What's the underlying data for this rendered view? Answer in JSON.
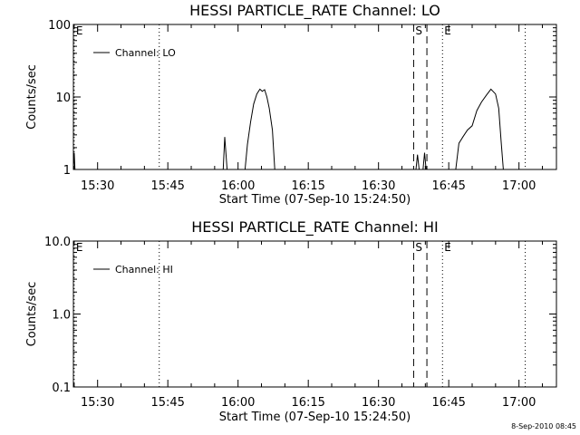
{
  "chart_data": [
    {
      "type": "line",
      "title": "HESSI PARTICLE_RATE Channel: LO",
      "xlabel": "Start Time (07-Sep-10 15:24:50)",
      "ylabel": "Counts/sec",
      "yscale": "log",
      "xlim": [
        "15:24:50",
        "17:08:00"
      ],
      "ylim": [
        1,
        100
      ],
      "xticks": [
        "15:30",
        "15:45",
        "16:00",
        "16:15",
        "16:30",
        "16:45",
        "17:00"
      ],
      "yticks": [
        "1",
        "10",
        "100"
      ],
      "legend": {
        "position": "top-left"
      },
      "series": [
        {
          "name": "Channel: LO",
          "segments": [
            [
              [
                "15:24:50",
                1.0
              ],
              [
                "15:25:00",
                1.7
              ],
              [
                "15:25:10",
                1.0
              ]
            ],
            [
              [
                "15:56:50",
                1.0
              ],
              [
                "15:57:10",
                2.8
              ],
              [
                "15:57:40",
                1.0
              ]
            ],
            [
              [
                "16:01:30",
                1.0
              ],
              [
                "16:02:00",
                2.2
              ],
              [
                "16:02:40",
                4.5
              ],
              [
                "16:03:20",
                8.0
              ],
              [
                "16:04:00",
                11.0
              ],
              [
                "16:04:40",
                12.8
              ],
              [
                "16:05:10",
                12.0
              ],
              [
                "16:05:40",
                12.6
              ],
              [
                "16:06:10",
                10.0
              ],
              [
                "16:06:40",
                7.0
              ],
              [
                "16:07:20",
                3.5
              ],
              [
                "16:07:50",
                1.0
              ]
            ],
            [
              [
                "16:38:00",
                1.0
              ],
              [
                "16:38:20",
                1.6
              ],
              [
                "16:38:40",
                1.0
              ]
            ],
            [
              [
                "16:39:30",
                1.0
              ],
              [
                "16:39:50",
                1.7
              ],
              [
                "16:40:10",
                1.0
              ]
            ],
            [
              [
                "16:46:30",
                1.0
              ],
              [
                "16:47:10",
                2.3
              ],
              [
                "16:48:00",
                2.8
              ],
              [
                "16:49:00",
                3.5
              ],
              [
                "16:50:00",
                4.0
              ],
              [
                "16:51:00",
                6.5
              ],
              [
                "16:52:00",
                8.5
              ],
              [
                "16:53:00",
                10.5
              ],
              [
                "16:54:00",
                12.8
              ],
              [
                "16:55:00",
                11.0
              ],
              [
                "16:55:40",
                7.0
              ],
              [
                "16:56:10",
                2.5
              ],
              [
                "16:56:40",
                1.0
              ]
            ]
          ]
        }
      ],
      "markers": [
        {
          "label": "E",
          "time": "15:25:00",
          "style": "dotted"
        },
        {
          "label": "",
          "time": "15:43:10",
          "style": "dotted"
        },
        {
          "label": "S",
          "time": "16:37:30",
          "style": "dashed"
        },
        {
          "label": "",
          "time": "16:40:20",
          "style": "dashed"
        },
        {
          "label": "E",
          "time": "16:43:40",
          "style": "dotted"
        },
        {
          "label": "",
          "time": "17:01:20",
          "style": "dotted"
        }
      ]
    },
    {
      "type": "line",
      "title": "HESSI PARTICLE_RATE Channel: HI",
      "xlabel": "Start Time (07-Sep-10 15:24:50)",
      "ylabel": "Counts/sec",
      "yscale": "log",
      "xlim": [
        "15:24:50",
        "17:08:00"
      ],
      "ylim": [
        0.1,
        10
      ],
      "xticks": [
        "15:30",
        "15:45",
        "16:00",
        "16:15",
        "16:30",
        "16:45",
        "17:00"
      ],
      "yticks": [
        "0.1",
        "1.0",
        "10.0"
      ],
      "legend": {
        "position": "top-left"
      },
      "series": [
        {
          "name": "Channel: HI",
          "segments": []
        }
      ],
      "markers": [
        {
          "label": "E",
          "time": "15:25:00",
          "style": "dotted"
        },
        {
          "label": "",
          "time": "15:43:10",
          "style": "dotted"
        },
        {
          "label": "S",
          "time": "16:37:30",
          "style": "dashed"
        },
        {
          "label": "",
          "time": "16:40:20",
          "style": "dashed"
        },
        {
          "label": "E",
          "time": "16:43:40",
          "style": "dotted"
        },
        {
          "label": "",
          "time": "17:01:20",
          "style": "dotted"
        }
      ]
    }
  ],
  "footer": {
    "timestamp": "8-Sep-2010 08:45"
  }
}
